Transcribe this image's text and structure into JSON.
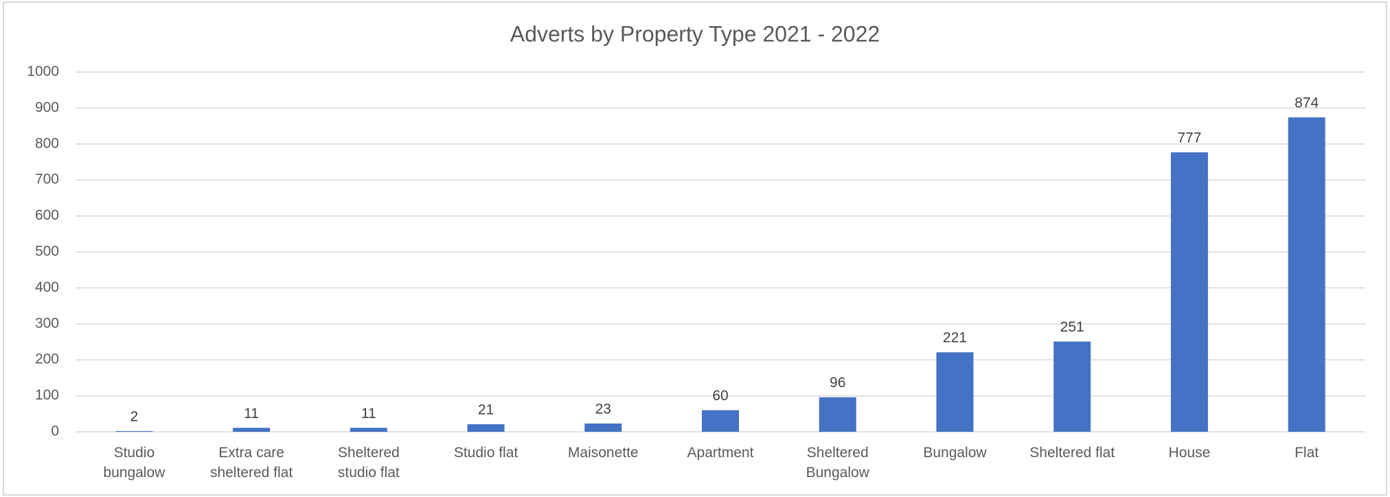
{
  "chart_data": {
    "type": "bar",
    "title": "Adverts by Property Type 2021 - 2022",
    "categories": [
      "Studio bungalow",
      "Extra care sheltered flat",
      "Sheltered studio flat",
      "Studio flat",
      "Maisonette",
      "Apartment",
      "Sheltered Bungalow",
      "Bungalow",
      "Sheltered flat",
      "House",
      "Flat"
    ],
    "values": [
      2,
      11,
      11,
      21,
      23,
      60,
      96,
      221,
      251,
      777,
      874
    ],
    "color": "#4472c4",
    "ylim": [
      0,
      1000
    ],
    "yticks": [
      0,
      100,
      200,
      300,
      400,
      500,
      600,
      700,
      800,
      900,
      1000
    ],
    "grid": true
  }
}
